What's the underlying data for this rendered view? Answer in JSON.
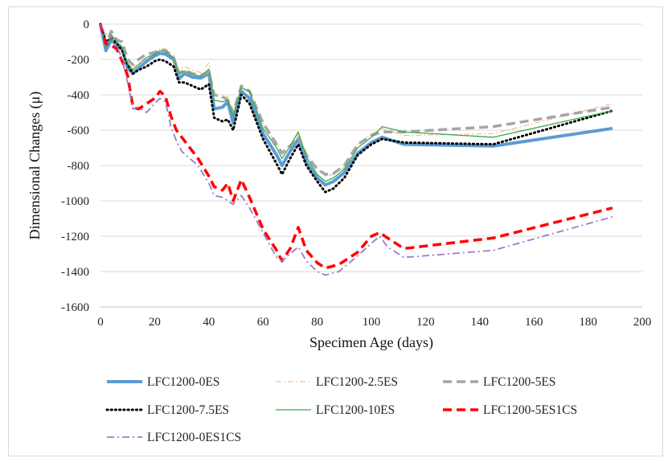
{
  "chart_data": {
    "type": "line",
    "xlabel": "Specimen Age (days)",
    "ylabel": "Dimensional Changes (μ)",
    "xlim": [
      0,
      200
    ],
    "ylim": [
      -1600,
      0
    ],
    "xticks": [
      0,
      20,
      40,
      60,
      80,
      100,
      120,
      140,
      160,
      180,
      200
    ],
    "yticks": [
      0,
      -200,
      -400,
      -600,
      -800,
      -1000,
      -1200,
      -1400,
      -1600
    ],
    "grid": "horizontal",
    "legend_position": "bottom",
    "series": [
      {
        "name": "LFC1200-0ES",
        "color": "#5b9bd5",
        "style": "solid-thick",
        "x": [
          0,
          2,
          4,
          6,
          8,
          10,
          12,
          14,
          17,
          20,
          22,
          24,
          27,
          29,
          31,
          34,
          37,
          40,
          42,
          45,
          47,
          49,
          52,
          55,
          60,
          65,
          67,
          70,
          73,
          76,
          80,
          83,
          86,
          90,
          95,
          100,
          104,
          112,
          145,
          189
        ],
        "values": [
          0,
          -150,
          -90,
          -120,
          -140,
          -250,
          -280,
          -250,
          -210,
          -180,
          -165,
          -170,
          -200,
          -310,
          -280,
          -300,
          -305,
          -280,
          -480,
          -470,
          -440,
          -560,
          -380,
          -420,
          -620,
          -740,
          -800,
          -720,
          -650,
          -780,
          -870,
          -910,
          -890,
          -840,
          -730,
          -670,
          -640,
          -680,
          -690,
          -590
        ]
      },
      {
        "name": "LFC1200-2.5ES",
        "color": "#f4b183",
        "style": "dash-dot-thin",
        "x": [
          0,
          2,
          4,
          6,
          8,
          10,
          12,
          14,
          17,
          20,
          22,
          24,
          27,
          29,
          31,
          34,
          37,
          40,
          42,
          45,
          47,
          49,
          52,
          55,
          60,
          65,
          67,
          70,
          73,
          76,
          80,
          83,
          86,
          90,
          95,
          100,
          104,
          112,
          145,
          189
        ],
        "values": [
          0,
          -120,
          -70,
          -100,
          -120,
          -220,
          -250,
          -220,
          -190,
          -160,
          -140,
          -140,
          -175,
          -260,
          -240,
          -260,
          -275,
          -220,
          -400,
          -420,
          -410,
          -500,
          -360,
          -390,
          -560,
          -680,
          -730,
          -680,
          -620,
          -730,
          -820,
          -860,
          -850,
          -810,
          -680,
          -620,
          -590,
          -630,
          -620,
          -450
        ]
      },
      {
        "name": "LFC1200-5ES",
        "color": "#a5a5a5",
        "style": "dashed-thick",
        "x": [
          0,
          2,
          4,
          6,
          8,
          10,
          12,
          14,
          17,
          20,
          22,
          24,
          27,
          29,
          31,
          34,
          37,
          40,
          42,
          45,
          47,
          49,
          52,
          55,
          60,
          65,
          67,
          70,
          73,
          76,
          80,
          83,
          86,
          90,
          95,
          100,
          104,
          112,
          145,
          189
        ],
        "values": [
          0,
          -110,
          -40,
          -90,
          -100,
          -200,
          -230,
          -200,
          -170,
          -160,
          -145,
          -150,
          -190,
          -280,
          -260,
          -280,
          -290,
          -270,
          -400,
          -410,
          -430,
          -500,
          -350,
          -380,
          -560,
          -680,
          -730,
          -690,
          -640,
          -740,
          -820,
          -850,
          -845,
          -800,
          -680,
          -630,
          -610,
          -610,
          -580,
          -470
        ]
      },
      {
        "name": "LFC1200-7.5ES",
        "color": "#000000",
        "style": "dotted",
        "x": [
          0,
          2,
          4,
          6,
          8,
          10,
          12,
          14,
          17,
          20,
          22,
          24,
          27,
          29,
          31,
          34,
          37,
          40,
          42,
          45,
          47,
          49,
          52,
          55,
          60,
          65,
          67,
          70,
          73,
          76,
          80,
          83,
          86,
          90,
          95,
          100,
          104,
          112,
          145,
          189
        ],
        "values": [
          0,
          -100,
          -80,
          -110,
          -150,
          -230,
          -280,
          -260,
          -240,
          -210,
          -200,
          -210,
          -240,
          -330,
          -330,
          -350,
          -370,
          -340,
          -530,
          -550,
          -540,
          -600,
          -400,
          -450,
          -650,
          -790,
          -850,
          -760,
          -680,
          -800,
          -890,
          -950,
          -930,
          -870,
          -740,
          -680,
          -650,
          -670,
          -680,
          -490
        ]
      },
      {
        "name": "LFC1200-10ES",
        "color": "#3aaa48",
        "style": "solid-thin",
        "x": [
          0,
          2,
          4,
          6,
          8,
          10,
          12,
          14,
          17,
          20,
          22,
          24,
          27,
          29,
          31,
          34,
          37,
          40,
          42,
          45,
          47,
          49,
          52,
          55,
          60,
          65,
          67,
          70,
          73,
          76,
          80,
          83,
          86,
          90,
          95,
          100,
          104,
          112,
          145,
          189
        ],
        "values": [
          0,
          -130,
          -60,
          -100,
          -130,
          -220,
          -260,
          -230,
          -190,
          -170,
          -150,
          -155,
          -190,
          -280,
          -265,
          -285,
          -295,
          -255,
          -430,
          -440,
          -430,
          -520,
          -360,
          -380,
          -590,
          -700,
          -760,
          -690,
          -610,
          -750,
          -850,
          -890,
          -870,
          -820,
          -700,
          -640,
          -580,
          -610,
          -640,
          -490
        ]
      },
      {
        "name": "LFC1200-5ES1CS",
        "color": "#ff0000",
        "style": "dashed-thick",
        "x": [
          0,
          2,
          4,
          6,
          8,
          10,
          12,
          14,
          17,
          20,
          22,
          24,
          26,
          28,
          30,
          33,
          36,
          40,
          42,
          45,
          47,
          49,
          52,
          55,
          60,
          65,
          67,
          70,
          73,
          76,
          80,
          83,
          88,
          95,
          100,
          103,
          106,
          112,
          145,
          189
        ],
        "values": [
          0,
          -110,
          -120,
          -140,
          -210,
          -290,
          -470,
          -480,
          -450,
          -420,
          -380,
          -410,
          -520,
          -600,
          -640,
          -700,
          -760,
          -860,
          -920,
          -940,
          -900,
          -1000,
          -880,
          -980,
          -1160,
          -1280,
          -1340,
          -1270,
          -1150,
          -1280,
          -1350,
          -1380,
          -1360,
          -1290,
          -1200,
          -1180,
          -1210,
          -1270,
          -1210,
          -1040
        ]
      },
      {
        "name": "LFC1200-0ES1CS",
        "color": "#9e79c9",
        "style": "dash-dot",
        "x": [
          0,
          2,
          4,
          6,
          8,
          10,
          12,
          14,
          17,
          20,
          22,
          24,
          26,
          28,
          30,
          33,
          36,
          40,
          42,
          45,
          47,
          49,
          52,
          55,
          60,
          65,
          67,
          70,
          73,
          76,
          80,
          83,
          88,
          95,
          100,
          103,
          106,
          112,
          145,
          189
        ],
        "values": [
          0,
          -60,
          -80,
          -120,
          -200,
          -330,
          -480,
          -470,
          -500,
          -450,
          -420,
          -440,
          -580,
          -660,
          -720,
          -760,
          -800,
          -900,
          -970,
          -980,
          -1000,
          -1020,
          -970,
          -1040,
          -1180,
          -1320,
          -1340,
          -1300,
          -1260,
          -1340,
          -1400,
          -1420,
          -1400,
          -1310,
          -1240,
          -1200,
          -1260,
          -1320,
          -1280,
          -1090
        ]
      }
    ]
  }
}
